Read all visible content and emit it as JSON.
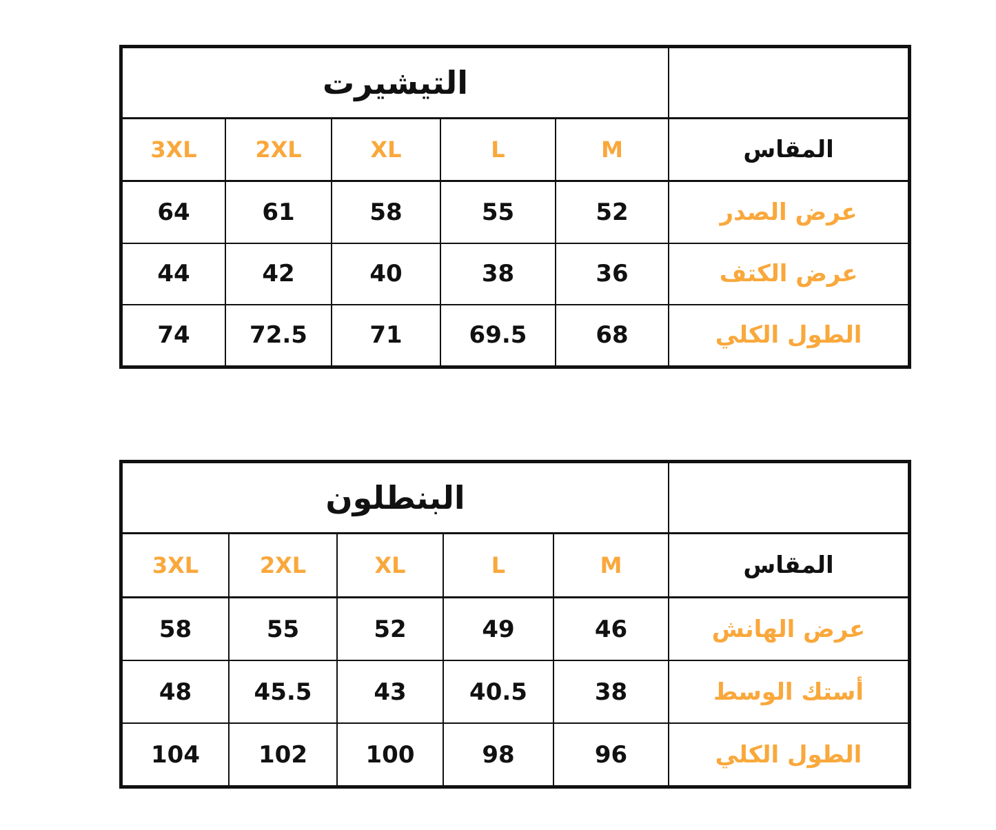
{
  "accent_color": "#F9A83C",
  "tables": [
    {
      "title": "التيشيرت",
      "header_label": "المقاس",
      "sizes": [
        "3XL",
        "2XL",
        "XL",
        "L",
        "M"
      ],
      "rows": [
        {
          "label": "عرض الصدر",
          "values": [
            "64",
            "61",
            "58",
            "55",
            "52"
          ]
        },
        {
          "label": "عرض الكتف",
          "values": [
            "44",
            "42",
            "40",
            "38",
            "36"
          ]
        },
        {
          "label": "الطول الكلي",
          "values": [
            "74",
            "72.5",
            "71",
            "69.5",
            "68"
          ]
        }
      ]
    },
    {
      "title": "البنطلون",
      "header_label": "المقاس",
      "sizes": [
        "3XL",
        "2XL",
        "XL",
        "L",
        "M"
      ],
      "rows": [
        {
          "label": "عرض الهانش",
          "values": [
            "58",
            "55",
            "52",
            "49",
            "46"
          ]
        },
        {
          "label": "أستك الوسط",
          "values": [
            "48",
            "45.5",
            "43",
            "40.5",
            "38"
          ]
        },
        {
          "label": "الطول الكلي",
          "values": [
            "104",
            "102",
            "100",
            "98",
            "96"
          ]
        }
      ]
    }
  ]
}
